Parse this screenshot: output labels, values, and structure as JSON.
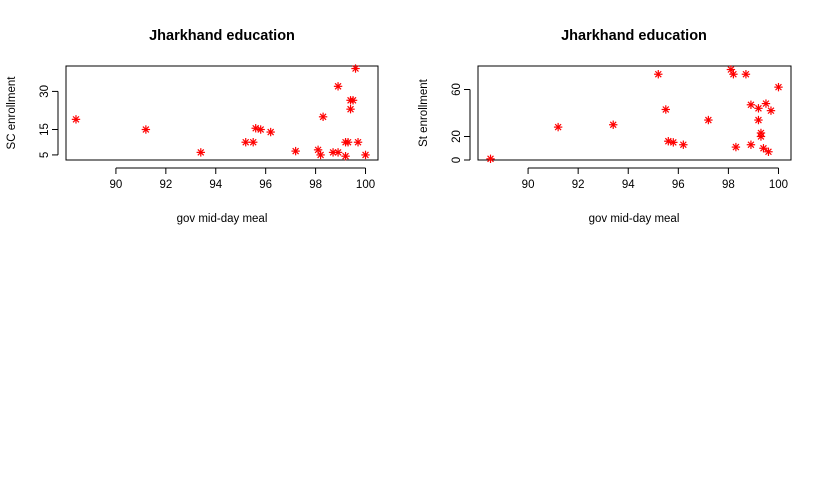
{
  "chart_data": [
    {
      "type": "scatter",
      "title": "Jharkhand education",
      "xlabel": "gov mid-day meal",
      "ylabel": "SC enrollment",
      "xlim": [
        88,
        100.5
      ],
      "ylim": [
        3,
        40
      ],
      "xticks": [
        90,
        92,
        94,
        96,
        98,
        100
      ],
      "yticks": [
        5,
        15,
        30
      ],
      "marker": "asterisk",
      "color": "#ff0000",
      "points": [
        {
          "x": 88.4,
          "y": 19
        },
        {
          "x": 91.2,
          "y": 15
        },
        {
          "x": 93.4,
          "y": 6
        },
        {
          "x": 95.2,
          "y": 10
        },
        {
          "x": 95.5,
          "y": 10
        },
        {
          "x": 95.6,
          "y": 15.5
        },
        {
          "x": 95.8,
          "y": 15
        },
        {
          "x": 96.2,
          "y": 14
        },
        {
          "x": 97.2,
          "y": 6.5
        },
        {
          "x": 98.1,
          "y": 7
        },
        {
          "x": 98.2,
          "y": 5
        },
        {
          "x": 98.3,
          "y": 20
        },
        {
          "x": 98.7,
          "y": 6
        },
        {
          "x": 98.9,
          "y": 6
        },
        {
          "x": 98.9,
          "y": 32
        },
        {
          "x": 99.2,
          "y": 10
        },
        {
          "x": 99.2,
          "y": 4.5
        },
        {
          "x": 99.3,
          "y": 10
        },
        {
          "x": 99.4,
          "y": 23
        },
        {
          "x": 99.4,
          "y": 26.5
        },
        {
          "x": 99.5,
          "y": 26.5
        },
        {
          "x": 99.6,
          "y": 39
        },
        {
          "x": 99.7,
          "y": 10
        },
        {
          "x": 100.0,
          "y": 5
        }
      ]
    },
    {
      "type": "scatter",
      "title": "Jharkhand education",
      "xlabel": "gov mid-day meal",
      "ylabel": "St enrollment",
      "xlim": [
        88,
        100.5
      ],
      "ylim": [
        0,
        80
      ],
      "xticks": [
        90,
        92,
        94,
        96,
        98,
        100
      ],
      "yticks": [
        0,
        20,
        60
      ],
      "marker": "asterisk",
      "color": "#ff0000",
      "points": [
        {
          "x": 88.5,
          "y": 1
        },
        {
          "x": 91.2,
          "y": 28
        },
        {
          "x": 93.4,
          "y": 30
        },
        {
          "x": 95.2,
          "y": 73
        },
        {
          "x": 95.5,
          "y": 43
        },
        {
          "x": 95.6,
          "y": 16
        },
        {
          "x": 95.8,
          "y": 15
        },
        {
          "x": 96.2,
          "y": 13
        },
        {
          "x": 97.2,
          "y": 34
        },
        {
          "x": 98.1,
          "y": 77
        },
        {
          "x": 98.2,
          "y": 73
        },
        {
          "x": 98.3,
          "y": 11
        },
        {
          "x": 98.7,
          "y": 73
        },
        {
          "x": 98.9,
          "y": 13
        },
        {
          "x": 98.9,
          "y": 47
        },
        {
          "x": 99.2,
          "y": 34
        },
        {
          "x": 99.2,
          "y": 44
        },
        {
          "x": 99.3,
          "y": 23
        },
        {
          "x": 99.3,
          "y": 20
        },
        {
          "x": 99.4,
          "y": 10
        },
        {
          "x": 99.5,
          "y": 48
        },
        {
          "x": 99.6,
          "y": 7
        },
        {
          "x": 99.7,
          "y": 42
        },
        {
          "x": 100.0,
          "y": 62
        }
      ]
    }
  ]
}
